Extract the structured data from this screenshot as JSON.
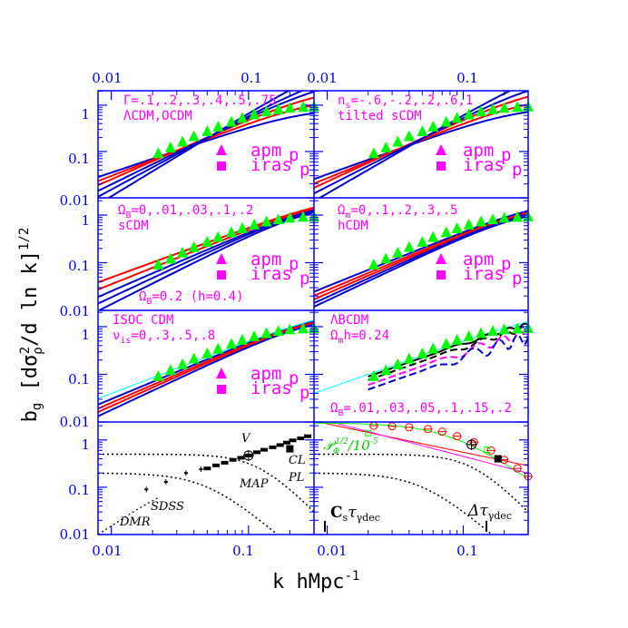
{
  "figure": {
    "x_label": "k hMpc",
    "x_label_sup": "-1",
    "y_label_prefix": "b",
    "y_label_sub": "g",
    "y_label_mid": "[dσ",
    "y_label_sub2": "ρ",
    "y_label_sup2": "2",
    "y_label_end": "/d ln k]",
    "y_label_sup3": "1/2",
    "top_ticks": [
      "0.01",
      "0.1",
      "0.01",
      "0.1"
    ],
    "bottom_ticks": [
      "0.01",
      "0.1",
      "0.01",
      "0.1"
    ],
    "y_ticks": [
      "1",
      "0.1",
      "0.01"
    ],
    "legend_apm": "apm",
    "legend_iras": "iras",
    "legend_sub": "p"
  },
  "colors": {
    "axis": "#0000ff",
    "magenta": "#ff00ff",
    "red": "#ff0000",
    "blue": "#0000cc",
    "green": "#00ff00",
    "cyan": "#00ffff",
    "black": "#000000"
  },
  "panels": {
    "p1": {
      "line1": "Γ=.1,.2,.3,.4,.5,.75",
      "line2": "ΛCDM,OCDM"
    },
    "p2": {
      "line1": "n",
      "line1_sub": "s",
      "line1_rest": "=-.6,-.2,.2,.6,1",
      "line2": "tilted sCDM"
    },
    "p3": {
      "line1": "Ω",
      "line1_sub": "B",
      "line1_rest": "=0,.01,.03,.1,.2",
      "line2": "sCDM",
      "line3": "Ω",
      "line3_sub": "B",
      "line3_rest": "=0.2 (h=0.4)"
    },
    "p4": {
      "line1": "Ω",
      "line1_sub": "m",
      "line1_rest": "=0,.1,.2,.3,.5",
      "line2": "hCDM"
    },
    "p5": {
      "line1": "ISOC CDM",
      "line2": "ν",
      "line2_sub": "is",
      "line2_rest": "=0,.3,.5,.8"
    },
    "p6": {
      "line1": "ΛBCDM",
      "line2": "Ω",
      "line2_sub": "m",
      "line2_rest": "h=0.24",
      "line3": "Ω",
      "line3_sub": "B",
      "line3_rest": "=.01,.03,.05,.1,.15,.2"
    },
    "p7": {
      "V": "V",
      "CL": "CL",
      "PL": "PL",
      "MAP": "MAP",
      "SDSS": "SDSS",
      "DMR": "DMR"
    },
    "p8": {
      "phi": "𝒫",
      "phi_sub": "Φ",
      "phi_sup": "1/2",
      "phi_rest": "/10",
      "phi_exp": "-5",
      "cs_label": "C",
      "cs_sub": "s",
      "cs_tau": "τ",
      "cs_tau_sub": "γdec",
      "dt_label": "Δτ",
      "dt_sub": "γdec"
    }
  },
  "chart_data": {
    "type": "line",
    "x_scale": "log",
    "y_scale": "log",
    "xlim": [
      0.008,
      0.3
    ],
    "ylim": [
      0.01,
      2
    ],
    "apm_points": {
      "k": [
        0.022,
        0.027,
        0.033,
        0.04,
        0.05,
        0.06,
        0.075,
        0.09,
        0.11,
        0.135,
        0.165,
        0.2,
        0.25,
        0.3
      ],
      "amp": [
        0.09,
        0.12,
        0.16,
        0.21,
        0.27,
        0.34,
        0.43,
        0.52,
        0.62,
        0.72,
        0.8,
        0.86,
        0.9,
        0.92
      ]
    },
    "p7_v_bars": {
      "k": [
        0.05,
        0.058,
        0.067,
        0.077,
        0.088,
        0.1,
        0.115,
        0.13,
        0.15,
        0.17,
        0.19,
        0.21,
        0.24,
        0.27
      ],
      "amp": [
        0.25,
        0.29,
        0.33,
        0.38,
        0.42,
        0.47,
        0.55,
        0.62,
        0.7,
        0.78,
        0.88,
        0.98,
        1.08,
        1.2
      ]
    },
    "p7_sdss_points": {
      "k": [
        0.018,
        0.025,
        0.035,
        0.045
      ],
      "amp": [
        0.09,
        0.13,
        0.2,
        0.24
      ]
    },
    "p7_cl_point": {
      "k": 0.2,
      "amp": 0.65
    },
    "p8_red_circles": {
      "k": [
        0.022,
        0.03,
        0.04,
        0.055,
        0.07,
        0.09,
        0.12,
        0.16,
        0.2,
        0.25,
        0.3
      ],
      "amp": [
        2.0,
        1.95,
        1.85,
        1.7,
        1.5,
        1.2,
        0.9,
        0.6,
        0.38,
        0.25,
        0.17
      ]
    },
    "p8_green_squares": {
      "k": [
        0.02,
        0.15
      ],
      "amp": [
        1.4,
        0.62
      ]
    },
    "p8_black_point": {
      "k": 0.18,
      "amp": 0.4
    }
  }
}
